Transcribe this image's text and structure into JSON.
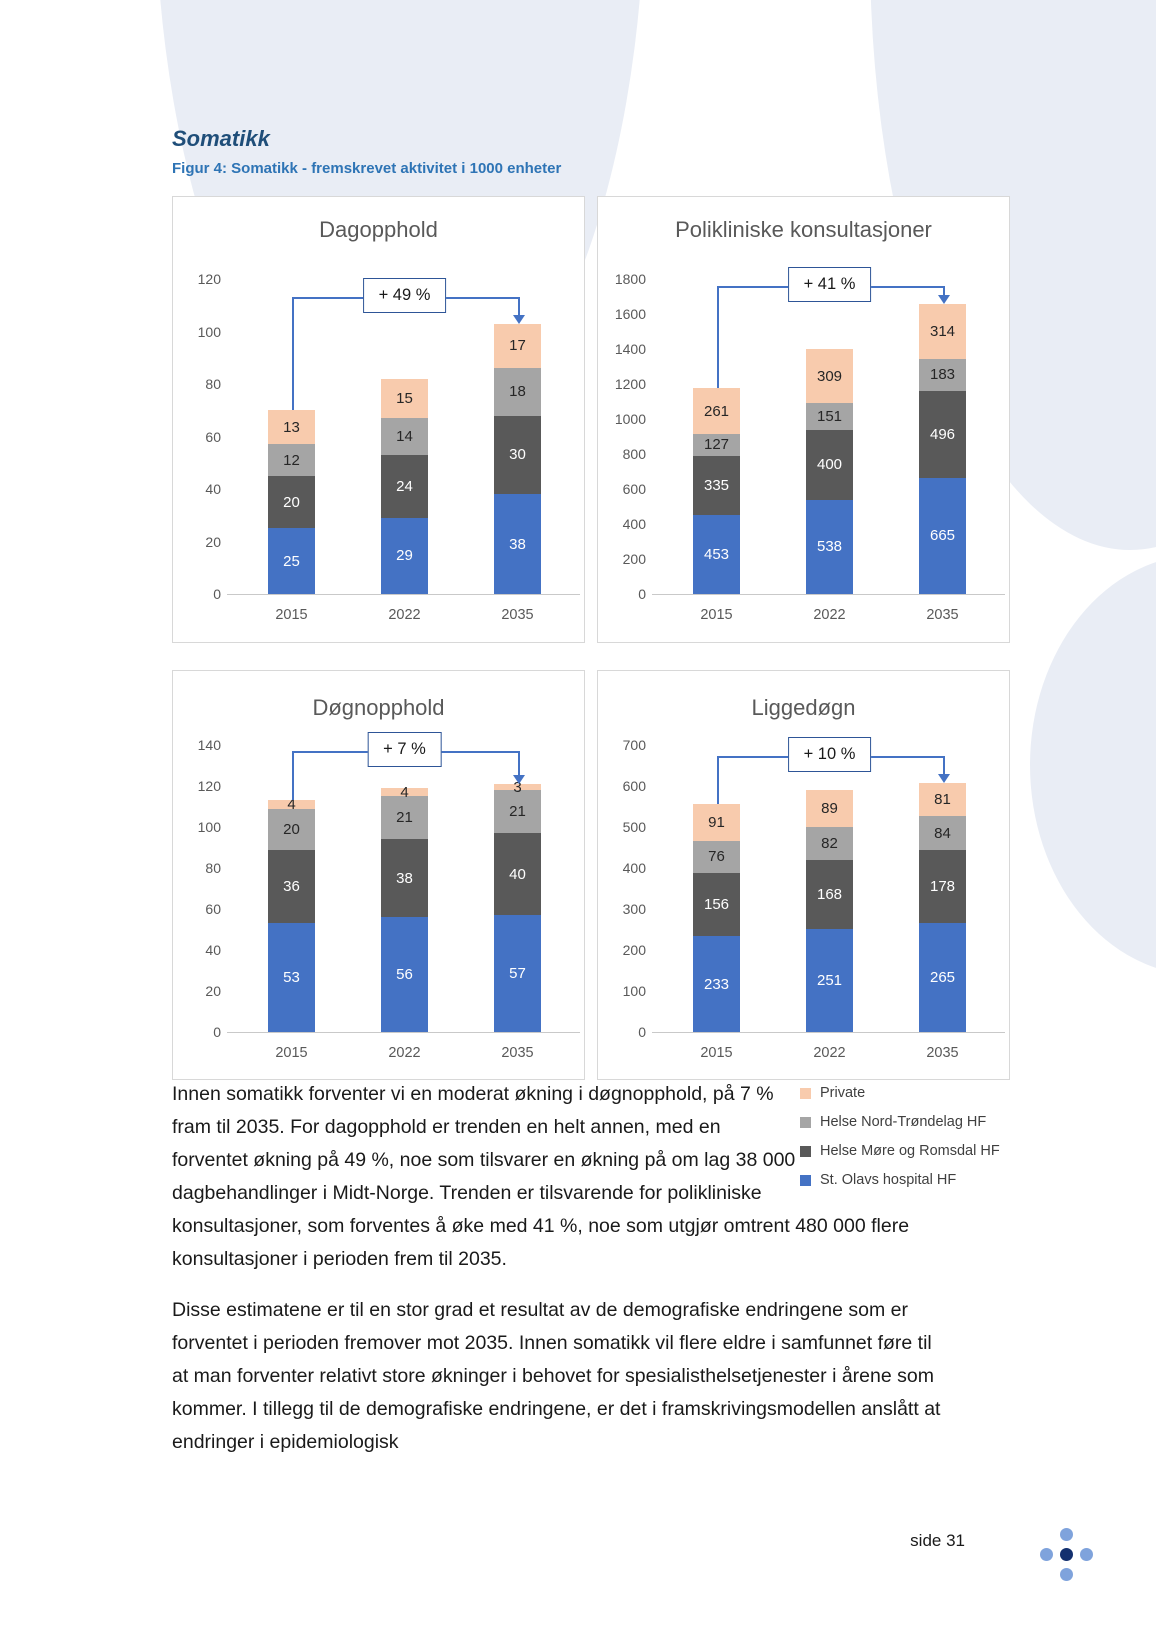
{
  "page": {
    "section_title": "Somatikk",
    "figure_caption": "Figur 4: Somatikk - fremskrevet aktivitet i 1000 enheter",
    "footer_label": "side 31"
  },
  "colors": {
    "st_olavs_blue": "#4472C4",
    "helse_more_romsdal_dark_gray": "#595959",
    "helse_nord_trondelag_gray": "#A5A5A5",
    "private_peach": "#F8CBAD",
    "annotation_border_blue": "#2E5597",
    "connector_blue": "#4472C4",
    "heading_blue": "#1F4E79",
    "caption_blue": "#2E74B5",
    "background_blob_blue": "#E9EDF5"
  },
  "legend": {
    "items": [
      {
        "label": "Private",
        "color": "#F8CBAD"
      },
      {
        "label": "Helse Nord-Trøndelag HF",
        "color": "#A5A5A5"
      },
      {
        "label": "Helse Møre og Romsdal HF",
        "color": "#595959"
      },
      {
        "label": "St. Olavs hospital HF",
        "color": "#4472C4"
      }
    ]
  },
  "chart_data": [
    {
      "type": "bar",
      "stacked": true,
      "title": "Dagopphold",
      "categories": [
        "2015",
        "2022",
        "2035"
      ],
      "series": [
        {
          "name": "St. Olavs hospital HF",
          "color": "#4472C4",
          "label_color": "#FFFFFF",
          "values": [
            25,
            29,
            38
          ]
        },
        {
          "name": "Helse Møre og Romsdal HF",
          "color": "#595959",
          "label_color": "#FFFFFF",
          "values": [
            20,
            24,
            30
          ]
        },
        {
          "name": "Helse Nord-Trøndelag HF",
          "color": "#A5A5A5",
          "label_color": "#262626",
          "values": [
            12,
            14,
            18
          ]
        },
        {
          "name": "Private",
          "color": "#F8CBAD",
          "label_color": "#262626",
          "values": [
            13,
            15,
            17
          ]
        }
      ],
      "ylim": [
        0,
        120
      ],
      "yticks": [
        0,
        20,
        40,
        60,
        80,
        100,
        120
      ],
      "annotation": "+ 49 %",
      "grid": false,
      "legend_position": "shared-beside-body-text"
    },
    {
      "type": "bar",
      "stacked": true,
      "title": "Polikliniske konsultasjoner",
      "categories": [
        "2015",
        "2022",
        "2035"
      ],
      "series": [
        {
          "name": "St. Olavs hospital HF",
          "color": "#4472C4",
          "label_color": "#FFFFFF",
          "values": [
            453,
            538,
            665
          ]
        },
        {
          "name": "Helse Møre og Romsdal HF",
          "color": "#595959",
          "label_color": "#FFFFFF",
          "values": [
            335,
            400,
            496
          ]
        },
        {
          "name": "Helse Nord-Trøndelag HF",
          "color": "#A5A5A5",
          "label_color": "#262626",
          "values": [
            127,
            151,
            183
          ]
        },
        {
          "name": "Private",
          "color": "#F8CBAD",
          "label_color": "#262626",
          "values": [
            261,
            309,
            314
          ]
        }
      ],
      "ylim": [
        0,
        1800
      ],
      "yticks": [
        0,
        200,
        400,
        600,
        800,
        1000,
        1200,
        1400,
        1600,
        1800
      ],
      "annotation": "+ 41 %",
      "grid": false,
      "legend_position": "shared-beside-body-text"
    },
    {
      "type": "bar",
      "stacked": true,
      "title": "Døgnopphold",
      "categories": [
        "2015",
        "2022",
        "2035"
      ],
      "series": [
        {
          "name": "St. Olavs hospital HF",
          "color": "#4472C4",
          "label_color": "#FFFFFF",
          "values": [
            53,
            56,
            57
          ]
        },
        {
          "name": "Helse Møre og Romsdal HF",
          "color": "#595959",
          "label_color": "#FFFFFF",
          "values": [
            36,
            38,
            40
          ]
        },
        {
          "name": "Helse Nord-Trøndelag HF",
          "color": "#A5A5A5",
          "label_color": "#262626",
          "values": [
            20,
            21,
            21
          ]
        },
        {
          "name": "Private",
          "color": "#F8CBAD",
          "label_color": "#262626",
          "values": [
            4,
            4,
            3
          ]
        }
      ],
      "ylim": [
        0,
        140
      ],
      "yticks": [
        0,
        20,
        40,
        60,
        80,
        100,
        120,
        140
      ],
      "annotation": "+ 7 %",
      "grid": false,
      "legend_position": "shared-beside-body-text"
    },
    {
      "type": "bar",
      "stacked": true,
      "title": "Liggedøgn",
      "categories": [
        "2015",
        "2022",
        "2035"
      ],
      "series": [
        {
          "name": "St. Olavs hospital HF",
          "color": "#4472C4",
          "label_color": "#FFFFFF",
          "values": [
            233,
            251,
            265
          ]
        },
        {
          "name": "Helse Møre og Romsdal HF",
          "color": "#595959",
          "label_color": "#FFFFFF",
          "values": [
            156,
            168,
            178
          ]
        },
        {
          "name": "Helse Nord-Trøndelag HF",
          "color": "#A5A5A5",
          "label_color": "#262626",
          "values": [
            76,
            82,
            84
          ]
        },
        {
          "name": "Private",
          "color": "#F8CBAD",
          "label_color": "#262626",
          "values": [
            91,
            89,
            81
          ]
        }
      ],
      "ylim": [
        0,
        700
      ],
      "yticks": [
        0,
        100,
        200,
        300,
        400,
        500,
        600,
        700
      ],
      "annotation": "+ 10 %",
      "grid": false,
      "legend_position": "shared-beside-body-text"
    }
  ],
  "body": {
    "paragraphs": [
      "Innen somatikk forventer vi en moderat økning i døgnopphold, på 7 % fram til 2035. For dagopphold er trenden en helt annen, med en forventet økning på 49 %, noe som tilsvarer en økning på om lag 38 000 dagbehandlinger i Midt-Norge. Trenden er tilsvarende for polikliniske konsultasjoner, som forventes å øke med 41 %, noe som utgjør omtrent 480 000 flere konsultasjoner i perioden frem til 2035.",
      "Disse estimatene er til en stor grad et resultat av de demografiske endringene som er forventet i perioden fremover mot 2035. Innen somatikk vil flere eldre i samfunnet føre til at man forventer relativt store økninger i behovet for spesialisthelsetjenester i årene som kommer. I tillegg til de demografiske endringene, er det i framskrivingsmodellen anslått at endringer i epidemiologisk"
    ]
  }
}
